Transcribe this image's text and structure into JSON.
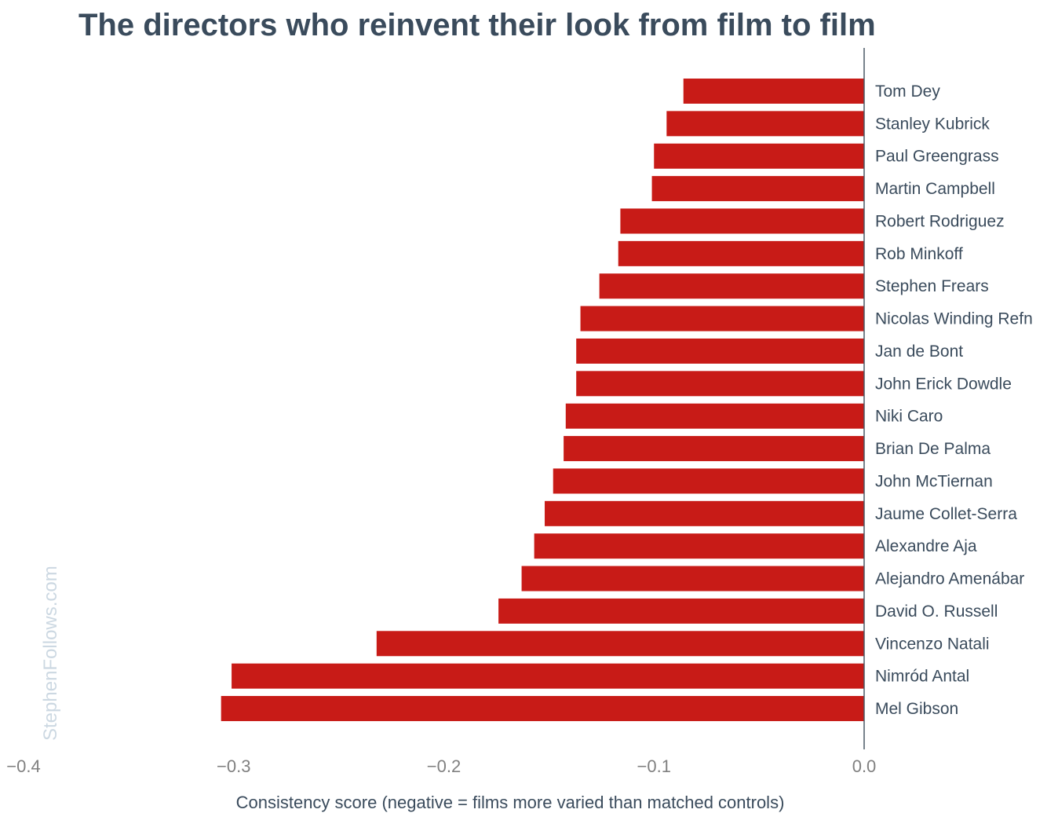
{
  "chart_data": {
    "type": "bar",
    "orientation": "horizontal",
    "title": "The directors who reinvent their look from film to film",
    "xlabel": "Consistency score (negative = films more varied than matched controls)",
    "ylabel": "",
    "xlim": [
      -0.4,
      0.0
    ],
    "xticks": [
      -0.4,
      -0.3,
      -0.2,
      -0.1,
      0.0
    ],
    "xtick_labels": [
      "−0.4",
      "−0.3",
      "−0.2",
      "−0.1",
      "0.0"
    ],
    "grid": false,
    "categories": [
      "Tom Dey",
      "Stanley Kubrick",
      "Paul Greengrass",
      "Martin Campbell",
      "Robert Rodriguez",
      "Rob Minkoff",
      "Stephen Frears",
      "Nicolas Winding Refn",
      "Jan de Bont",
      "John Erick Dowdle",
      "Niki Caro",
      "Brian De Palma",
      "John McTiernan",
      "Jaume Collet-Serra",
      "Alexandre Aja",
      "Alejandro Amenábar",
      "David O. Russell",
      "Vincenzo Natali",
      "Nimród Antal",
      "Mel Gibson"
    ],
    "values": [
      -0.086,
      -0.094,
      -0.1,
      -0.101,
      -0.116,
      -0.117,
      -0.126,
      -0.135,
      -0.137,
      -0.137,
      -0.142,
      -0.143,
      -0.148,
      -0.152,
      -0.157,
      -0.163,
      -0.174,
      -0.232,
      -0.301,
      -0.306
    ],
    "bar_color": "#c81b17",
    "axis_color": "#4a5a66",
    "watermark": "StephenFollows.com"
  }
}
